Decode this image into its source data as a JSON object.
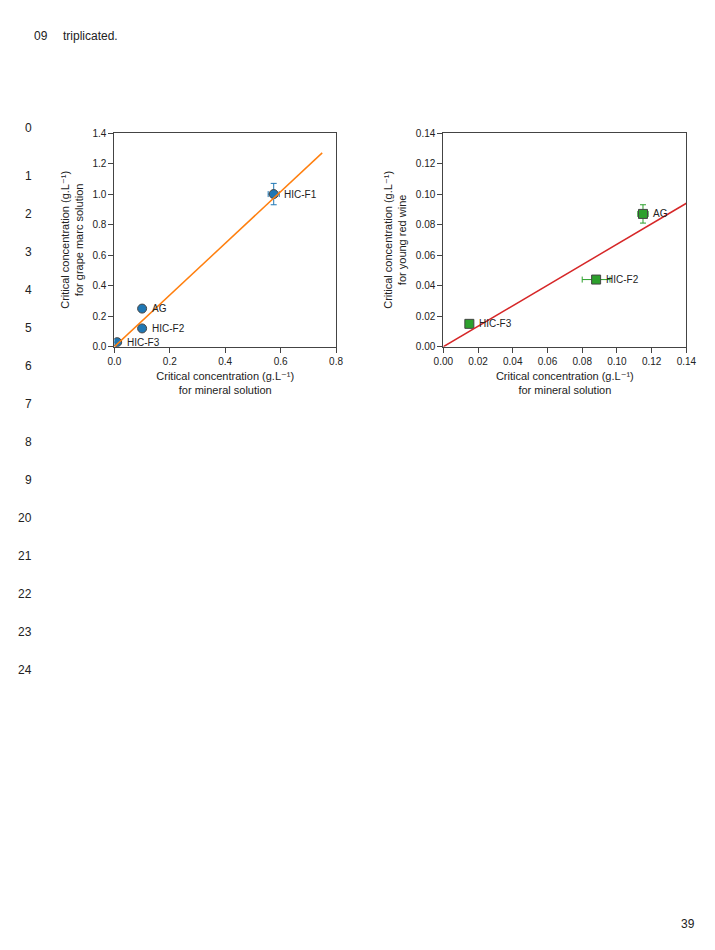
{
  "chart_data": [
    {
      "type": "scatter",
      "x_label": "Critical concentration (g.L⁻¹)\nfor mineral solution",
      "y_label": "Critical concentration (g.L⁻¹)\nfor grape marc solution",
      "xlim": [
        0.0,
        0.8
      ],
      "ylim": [
        0.0,
        1.4
      ],
      "xticks": [
        {
          "value": 0.0,
          "label": "0.0"
        },
        0.2,
        0.4,
        0.6,
        0.8
      ],
      "yticks": [
        {
          "value": 0.0,
          "label": "0.0"
        },
        0.2,
        0.4,
        0.6,
        0.8,
        {
          "value": 1.0,
          "label": "1.0"
        },
        1.2,
        1.4
      ],
      "grid": false,
      "series": [
        {
          "type": "scatter",
          "marker": "circle",
          "x": [
            0.01,
            0.1,
            0.1,
            0.575
          ],
          "values": [
            0.03,
            0.12,
            0.25,
            1.0
          ],
          "labels": [
            "HIC-F3",
            "HIC-F2",
            "AG",
            "HIC-F1"
          ],
          "xerr": [
            0.0,
            0.0,
            0.0,
            0.02
          ],
          "yerr": [
            0.0,
            0.0,
            0.0,
            0.07
          ]
        },
        {
          "type": "line",
          "x": [
            0.0,
            0.75
          ],
          "values": [
            0.0,
            1.27
          ]
        }
      ]
    },
    {
      "type": "scatter",
      "x_label": "Critical concentration (g.L⁻¹)\nfor mineral solution",
      "y_label": "Critical concentration (g.L⁻¹)\nfor young red wine",
      "xlim": [
        0.0,
        0.14
      ],
      "ylim": [
        0.0,
        0.14
      ],
      "xticks": [
        {
          "value": 0.0,
          "label": "0.00"
        },
        0.02,
        0.04,
        0.06,
        0.08,
        {
          "value": 0.1,
          "label": "0.10"
        },
        0.12,
        0.14
      ],
      "yticks": [
        {
          "value": 0.0,
          "label": "0.00"
        },
        0.02,
        0.04,
        0.06,
        0.08,
        {
          "value": 0.1,
          "label": "0.10"
        },
        0.12,
        0.14
      ],
      "grid": false,
      "series": [
        {
          "type": "scatter",
          "marker": "square",
          "x": [
            0.015,
            0.088,
            0.115
          ],
          "values": [
            0.015,
            0.044,
            0.087
          ],
          "labels": [
            "HIC-F3",
            "HIC-F2",
            "AG"
          ],
          "xerr": [
            0.0,
            0.008,
            0.003
          ],
          "yerr": [
            0.0,
            0.0,
            0.006
          ]
        },
        {
          "type": "line",
          "x": [
            0.0,
            0.14
          ],
          "values": [
            0.0,
            0.094
          ]
        }
      ]
    }
  ],
  "annotations": [
    "09",
    "triplicated.",
    "0",
    "1",
    "2",
    "3",
    "4",
    "5",
    "6",
    "7",
    "8",
    "9",
    "20",
    "21",
    "22",
    "23",
    "24",
    "39"
  ]
}
